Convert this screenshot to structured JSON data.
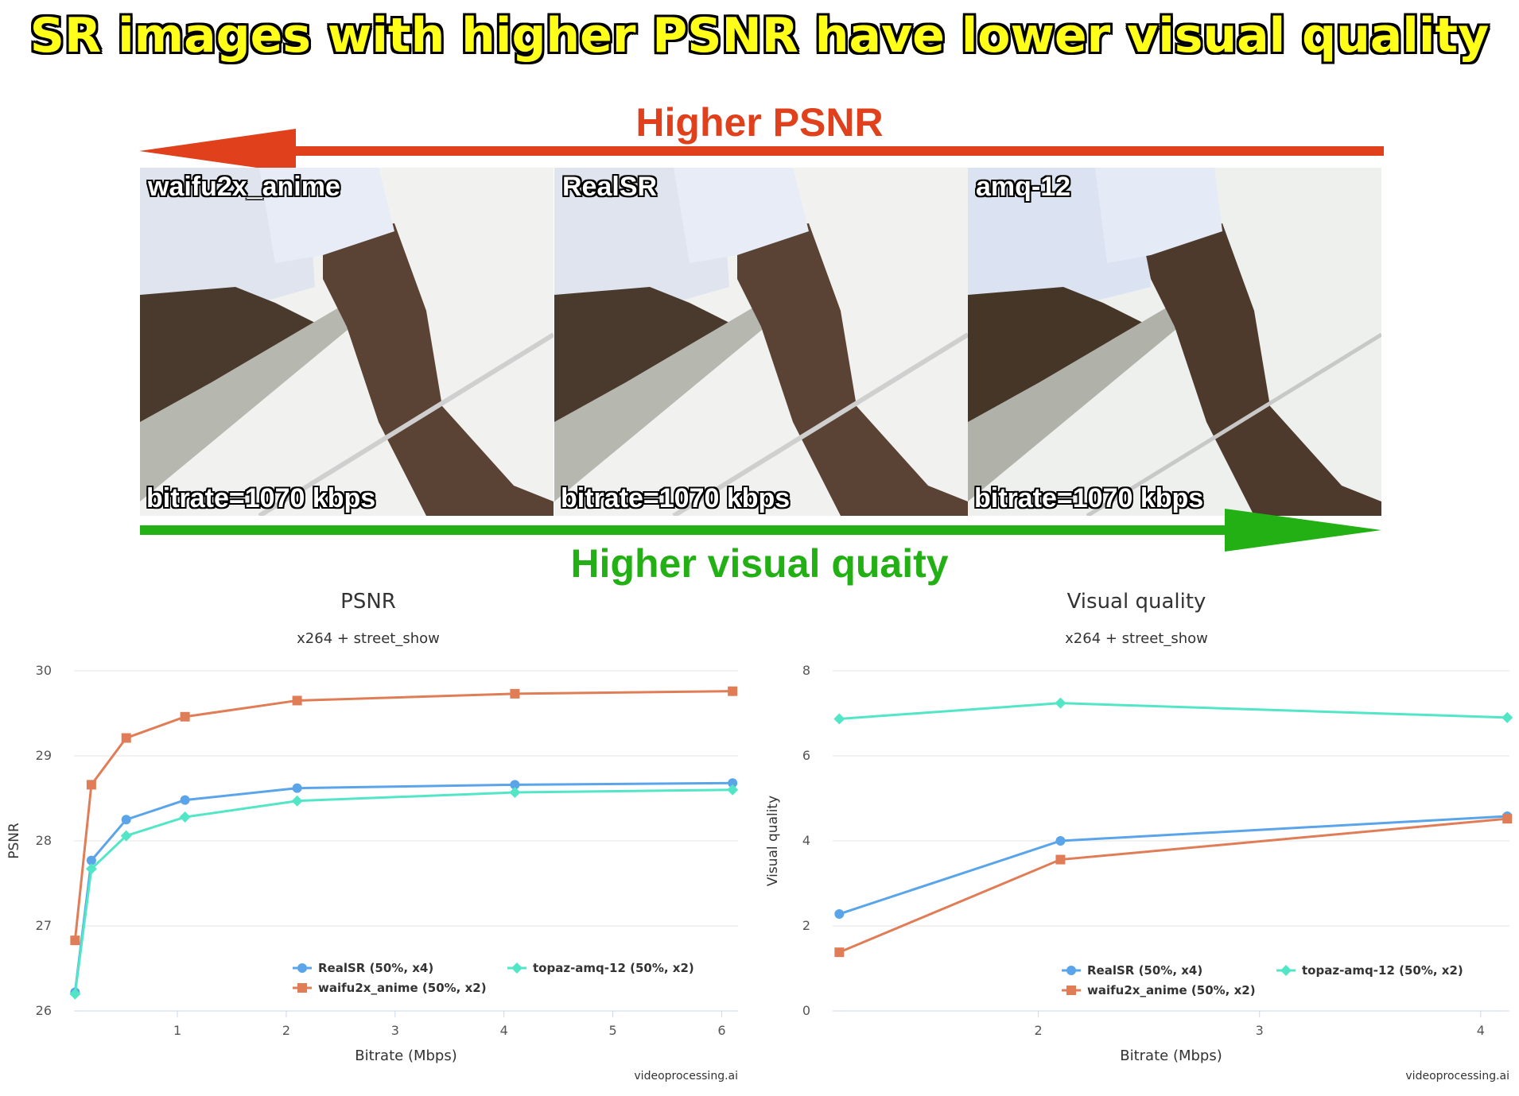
{
  "headline": "SR images with higher PSNR have lower visual quality",
  "arrow_top_label": "Higher PSNR",
  "arrow_bottom_label": "Higher visual quaity",
  "panels": [
    {
      "name": "waifu2x_anime",
      "bitrate": "bitrate=1070 kbps"
    },
    {
      "name": "RealSR",
      "bitrate": "bitrate=1070 kbps"
    },
    {
      "name": "amq-12",
      "bitrate": "bitrate=1070 kbps"
    }
  ],
  "colors": {
    "realsr": "#5aa4ea",
    "waifu": "#e07d57",
    "topaz": "#52e6c7",
    "red_arrow": "#e0401b",
    "green_arrow": "#22b014"
  },
  "chart_data": [
    {
      "type": "line",
      "title": "PSNR",
      "subtitle": "x264 + street_show",
      "xlabel": "Bitrate (Mbps)",
      "ylabel": "PSNR",
      "xlim": [
        0.05,
        6.15
      ],
      "ylim": [
        26,
        30
      ],
      "xticks": [
        1,
        2,
        3,
        4,
        5,
        6
      ],
      "yticks": [
        26,
        27,
        28,
        29,
        30
      ],
      "grid": true,
      "legend_position": "bottom-center",
      "credit": "videoprocessing.ai",
      "series": [
        {
          "name": "RealSR (50%, x4)",
          "marker": "circle",
          "color_key": "realsr",
          "x": [
            0.06,
            0.21,
            0.53,
            1.07,
            2.1,
            4.1,
            6.1
          ],
          "y": [
            26.22,
            27.77,
            28.25,
            28.48,
            28.62,
            28.66,
            28.68
          ]
        },
        {
          "name": "waifu2x_anime (50%, x2)",
          "marker": "square",
          "color_key": "waifu",
          "x": [
            0.06,
            0.21,
            0.53,
            1.07,
            2.1,
            4.1,
            6.1
          ],
          "y": [
            26.83,
            28.66,
            29.21,
            29.46,
            29.65,
            29.73,
            29.76
          ]
        },
        {
          "name": "topaz-amq-12 (50%, x2)",
          "marker": "diamond",
          "color_key": "topaz",
          "x": [
            0.06,
            0.21,
            0.53,
            1.07,
            2.1,
            4.1,
            6.1
          ],
          "y": [
            26.2,
            27.67,
            28.06,
            28.28,
            28.47,
            28.57,
            28.6
          ]
        }
      ]
    },
    {
      "type": "line",
      "title": "Visual quality",
      "subtitle": "x264 + street_show",
      "xlabel": "Bitrate (Mbps)",
      "ylabel": "Visual quality",
      "xlim": [
        1.07,
        4.13
      ],
      "ylim": [
        0,
        8
      ],
      "xticks": [
        2,
        3,
        4
      ],
      "yticks": [
        0,
        2,
        4,
        6,
        8
      ],
      "grid": true,
      "legend_position": "bottom-center",
      "credit": "videoprocessing.ai",
      "series": [
        {
          "name": "RealSR (50%, x4)",
          "marker": "circle",
          "color_key": "realsr",
          "x": [
            1.1,
            2.1,
            4.12
          ],
          "y": [
            2.28,
            4.0,
            4.58
          ]
        },
        {
          "name": "waifu2x_anime (50%, x2)",
          "marker": "square",
          "color_key": "waifu",
          "x": [
            1.1,
            2.1,
            4.12
          ],
          "y": [
            1.38,
            3.56,
            4.52
          ]
        },
        {
          "name": "topaz-amq-12 (50%, x2)",
          "marker": "diamond",
          "color_key": "topaz",
          "x": [
            1.1,
            2.1,
            4.12
          ],
          "y": [
            6.87,
            7.24,
            6.9
          ]
        }
      ]
    }
  ]
}
